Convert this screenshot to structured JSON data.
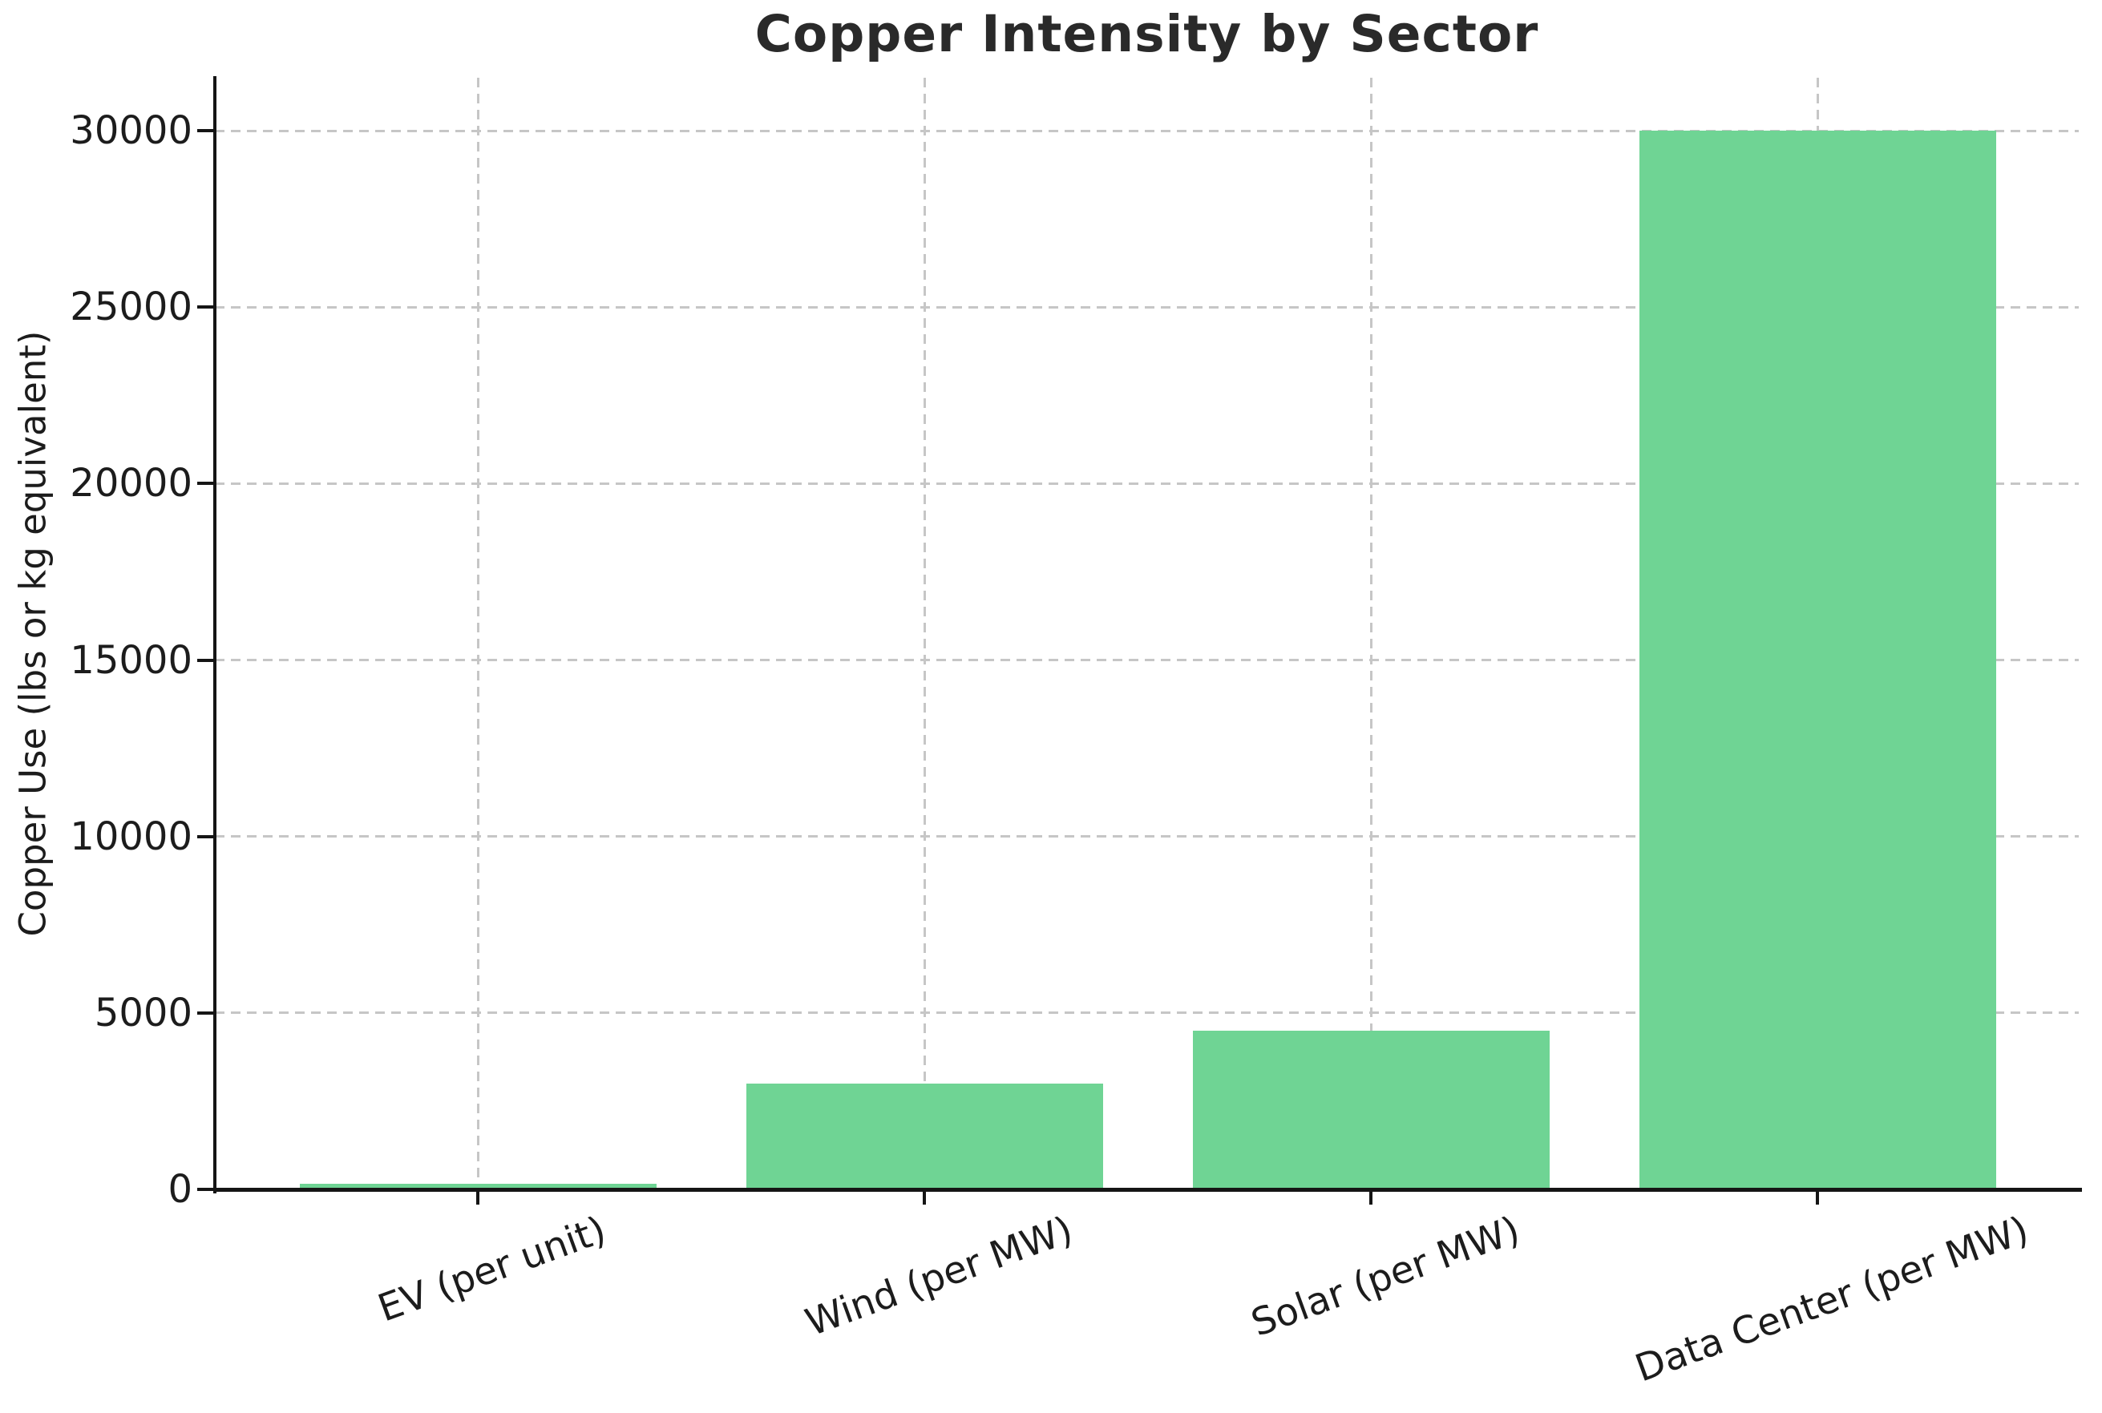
{
  "chart_data": {
    "type": "bar",
    "title": "Copper Intensity by Sector",
    "xlabel": "",
    "ylabel": "Copper Use (lbs or kg equivalent)",
    "categories": [
      "EV (per unit)",
      "Wind (per MW)",
      "Solar (per MW)",
      "Data Center (per MW)"
    ],
    "values": [
      150,
      3000,
      4500,
      30000
    ],
    "yticks": [
      0,
      5000,
      10000,
      15000,
      20000,
      25000,
      30000
    ],
    "ylim": [
      0,
      31500
    ],
    "legend_position": "none",
    "grid": "dashed both axes",
    "xtick_rotation_deg": 20,
    "colors": {
      "bar_fill": "#6fd494",
      "grid_line": "#c6c6c6",
      "axis_line": "#151515",
      "tick_text": "#1c1c1c",
      "title_text": "#2a2a2a"
    }
  }
}
